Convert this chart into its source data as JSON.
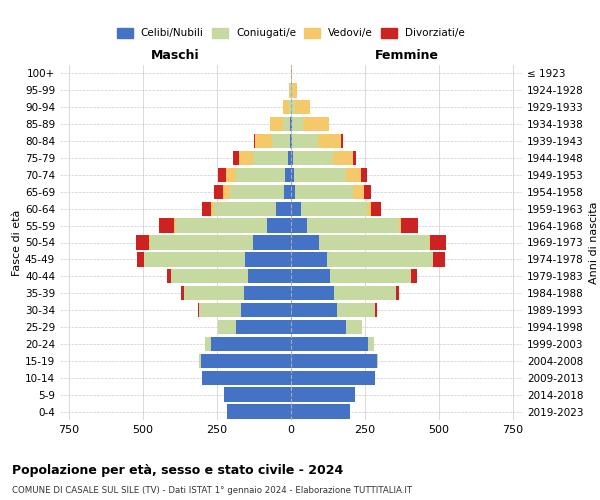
{
  "age_groups": [
    "0-4",
    "5-9",
    "10-14",
    "15-19",
    "20-24",
    "25-29",
    "30-34",
    "35-39",
    "40-44",
    "45-49",
    "50-54",
    "55-59",
    "60-64",
    "65-69",
    "70-74",
    "75-79",
    "80-84",
    "85-89",
    "90-94",
    "95-99",
    "100+"
  ],
  "birth_years": [
    "2019-2023",
    "2014-2018",
    "2009-2013",
    "2004-2008",
    "1999-2003",
    "1994-1998",
    "1989-1993",
    "1984-1988",
    "1979-1983",
    "1974-1978",
    "1969-1973",
    "1964-1968",
    "1959-1963",
    "1954-1958",
    "1949-1953",
    "1944-1948",
    "1939-1943",
    "1934-1938",
    "1929-1933",
    "1924-1928",
    "≤ 1923"
  ],
  "colors": {
    "celibe": "#4472C4",
    "coniugato": "#C5D9A0",
    "vedovo": "#F5C96A",
    "divorziato": "#CC2222"
  },
  "male": {
    "celibe": [
      215,
      225,
      300,
      305,
      270,
      185,
      170,
      160,
      145,
      155,
      130,
      80,
      50,
      25,
      20,
      10,
      5,
      2,
      0,
      0,
      0
    ],
    "coniugato": [
      0,
      0,
      0,
      5,
      20,
      60,
      140,
      200,
      260,
      340,
      345,
      310,
      210,
      180,
      165,
      120,
      60,
      25,
      8,
      2,
      0
    ],
    "vedovo": [
      0,
      0,
      0,
      0,
      0,
      0,
      0,
      0,
      0,
      0,
      5,
      5,
      10,
      25,
      35,
      45,
      55,
      45,
      20,
      5,
      0
    ],
    "divorziato": [
      0,
      0,
      0,
      0,
      0,
      0,
      5,
      10,
      15,
      25,
      45,
      50,
      30,
      30,
      25,
      20,
      5,
      0,
      0,
      0,
      0
    ]
  },
  "female": {
    "celibe": [
      200,
      215,
      285,
      290,
      260,
      185,
      155,
      145,
      130,
      120,
      95,
      55,
      35,
      15,
      10,
      8,
      5,
      2,
      0,
      0,
      0
    ],
    "coniugato": [
      0,
      0,
      0,
      5,
      20,
      55,
      130,
      210,
      275,
      360,
      370,
      310,
      220,
      195,
      175,
      135,
      85,
      40,
      15,
      5,
      0
    ],
    "vedovo": [
      0,
      0,
      0,
      0,
      0,
      0,
      0,
      0,
      0,
      0,
      5,
      8,
      15,
      35,
      50,
      65,
      80,
      85,
      50,
      15,
      2
    ],
    "divorziato": [
      0,
      0,
      0,
      0,
      0,
      0,
      5,
      10,
      20,
      40,
      55,
      55,
      35,
      25,
      20,
      10,
      5,
      0,
      0,
      0,
      0
    ]
  },
  "title": "Popolazione per età, sesso e stato civile - 2024",
  "subtitle": "COMUNE DI CASALE SUL SILE (TV) - Dati ISTAT 1° gennaio 2024 - Elaborazione TUTTITALIA.IT",
  "xlabel_left": "Maschi",
  "xlabel_right": "Femmine",
  "ylabel_left": "Fasce di età",
  "ylabel_right": "Anni di nascita",
  "legend_labels": [
    "Celibi/Nubili",
    "Coniugati/e",
    "Vedovi/e",
    "Divorziati/e"
  ],
  "xlim": 780,
  "bg_color": "#FFFFFF",
  "grid_color": "#CCCCCC",
  "bar_height": 0.85
}
